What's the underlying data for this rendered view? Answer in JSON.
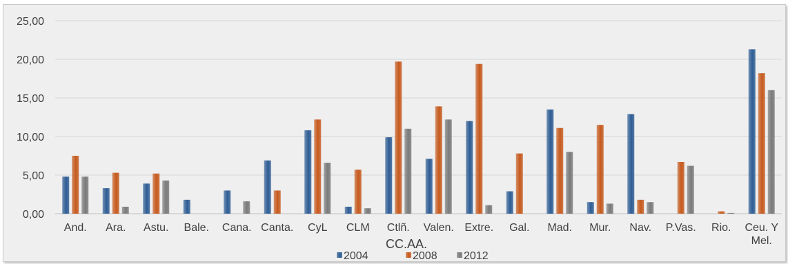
{
  "chart_data": {
    "type": "bar",
    "xlabel": "CC.AA.",
    "ylabel": "",
    "ylim": [
      0,
      25
    ],
    "yticks": [
      "0,00",
      "5,00",
      "10,00",
      "15,00",
      "20,00",
      "25,00"
    ],
    "grid": true,
    "legend_position": "bottom",
    "categories": [
      "And.",
      "Ara.",
      "Astu.",
      "Bale.",
      "Cana.",
      "Canta.",
      "CyL",
      "CLM",
      "Ctlñ.",
      "Valen.",
      "Extre.",
      "Gal.",
      "Mad.",
      "Mur.",
      "Nav.",
      "P.Vas.",
      "Rio.",
      "Ceu. Y Mel."
    ],
    "series": [
      {
        "name": "2004",
        "color": "#2e5d94",
        "values": [
          4.8,
          3.3,
          3.9,
          1.8,
          3.0,
          6.9,
          10.8,
          0.9,
          9.9,
          7.1,
          12.0,
          2.9,
          13.5,
          1.5,
          12.9,
          0.0,
          0.0,
          21.3
        ]
      },
      {
        "name": "2008",
        "color": "#c65a1e",
        "values": [
          7.5,
          5.3,
          5.2,
          0.0,
          0.0,
          3.0,
          12.2,
          5.7,
          19.7,
          13.9,
          19.4,
          7.8,
          11.1,
          11.5,
          1.8,
          6.7,
          0.3,
          18.2
        ]
      },
      {
        "name": "2012",
        "color": "#7a7a7a",
        "values": [
          4.8,
          0.9,
          4.3,
          0.0,
          1.6,
          0.0,
          6.6,
          0.7,
          11.0,
          12.2,
          1.1,
          0.0,
          8.0,
          1.3,
          1.5,
          6.2,
          0.1,
          16.0
        ]
      }
    ]
  }
}
